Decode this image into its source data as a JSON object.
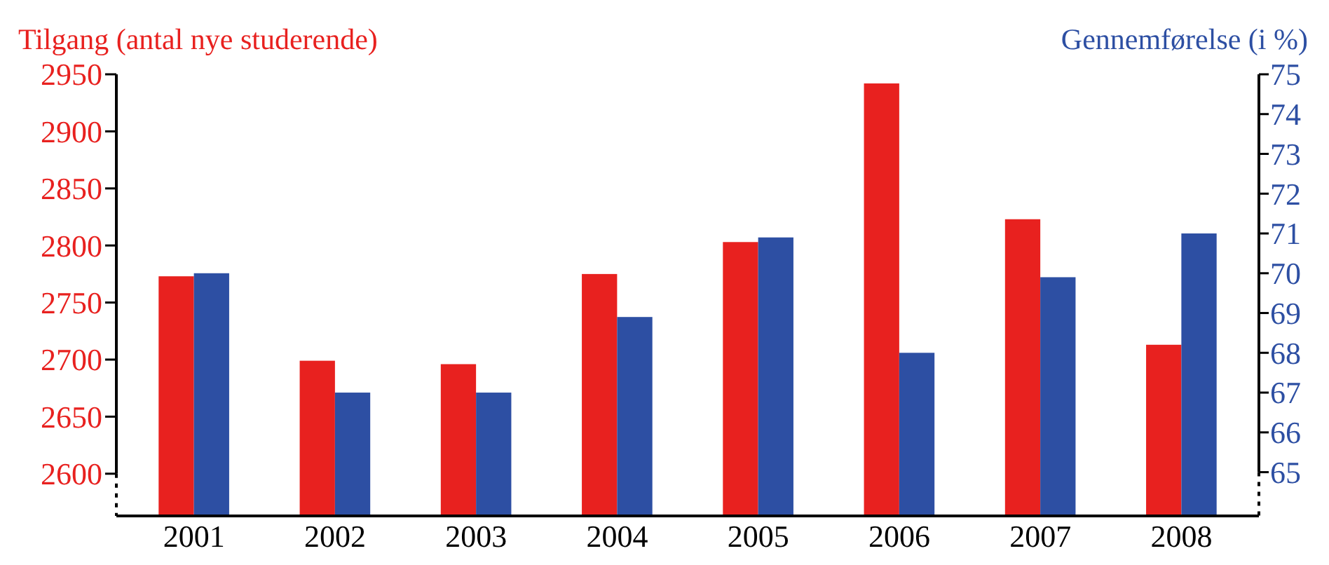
{
  "chart_data": {
    "type": "bar",
    "ylabel": "Tilgang (antal nye studerende)",
    "y2label": "Gennemførelse (i %)",
    "categories": [
      "2001",
      "2002",
      "2003",
      "2004",
      "2005",
      "2006",
      "2007",
      "2008"
    ],
    "series": [
      {
        "color": "#e8211f",
        "values": [
          2773,
          2699,
          2696,
          2775,
          2803,
          2942,
          2823,
          2713
        ]
      },
      {
        "color": "#2d4fa3",
        "axis": "y2",
        "values": [
          70.0,
          67.0,
          67.0,
          68.9,
          70.9,
          68.0,
          69.9,
          71.0
        ]
      }
    ],
    "ylim": [
      2563,
      2950
    ],
    "yticks": [
      2600,
      2650,
      2700,
      2750,
      2800,
      2850,
      2900,
      2950
    ],
    "y2lim": [
      63.9,
      75
    ],
    "y2ticks": [
      65,
      66,
      67,
      68,
      69,
      70,
      71,
      72,
      73,
      74,
      75
    ],
    "grid": false
  }
}
